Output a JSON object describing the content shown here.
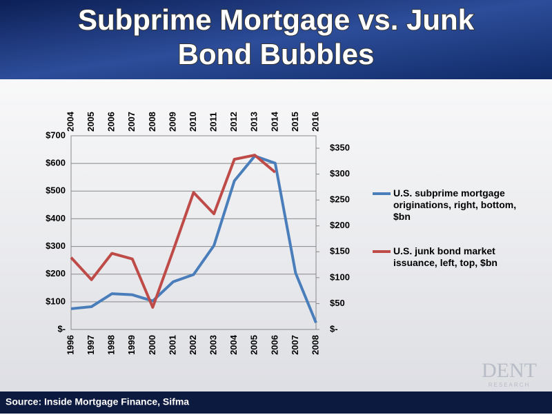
{
  "chart_data": {
    "type": "line",
    "title": "Subprime Mortgage vs. Junk Bond Bubbles",
    "categories": [
      "1996",
      "1997",
      "1998",
      "1999",
      "2000",
      "2001",
      "2002",
      "2003",
      "2004",
      "2005",
      "2006",
      "2007",
      "2008"
    ],
    "categories_top": [
      "2004",
      "2005",
      "2006",
      "2007",
      "2008",
      "2009",
      "2010",
      "2011",
      "2012",
      "2013",
      "2014",
      "2015",
      "2016"
    ],
    "series": [
      {
        "name": "U.S. subprime mortgage originations, right, bottom, $bn",
        "color": "#4a7ebb",
        "axis": "y2",
        "xaxis": "bottom",
        "values": [
          40,
          44,
          69,
          67,
          55,
          92,
          106,
          162,
          287,
          335,
          321,
          109,
          13
        ]
      },
      {
        "name": "U.S. junk bond market issuance, left, top, $bn",
        "color": "#be4b48",
        "axis": "y",
        "xaxis": "top",
        "values": [
          260,
          180,
          275,
          255,
          80,
          285,
          495,
          418,
          615,
          630,
          568,
          null,
          null
        ]
      }
    ],
    "ylim": [
      0,
      700
    ],
    "yticks": [
      {
        "value": 0,
        "label": "$-"
      },
      {
        "value": 100,
        "label": "$100"
      },
      {
        "value": 200,
        "label": "$200"
      },
      {
        "value": 300,
        "label": "$300"
      },
      {
        "value": 400,
        "label": "$400"
      },
      {
        "value": 500,
        "label": "$500"
      },
      {
        "value": 600,
        "label": "$600"
      },
      {
        "value": 700,
        "label": "$700"
      }
    ],
    "y2lim": [
      0,
      374
    ],
    "y2ticks": [
      {
        "value": 0,
        "label": "$-"
      },
      {
        "value": 50,
        "label": "$50"
      },
      {
        "value": 100,
        "label": "$100"
      },
      {
        "value": 150,
        "label": "$150"
      },
      {
        "value": 200,
        "label": "$200"
      },
      {
        "value": 250,
        "label": "$250"
      },
      {
        "value": 300,
        "label": "$300"
      },
      {
        "value": 350,
        "label": "$350"
      }
    ],
    "grid": true,
    "legend": "right",
    "source": "Source:  Inside Mortgage Finance, Sifma",
    "logo": "DENT",
    "logo_sub": "RESEARCH"
  }
}
